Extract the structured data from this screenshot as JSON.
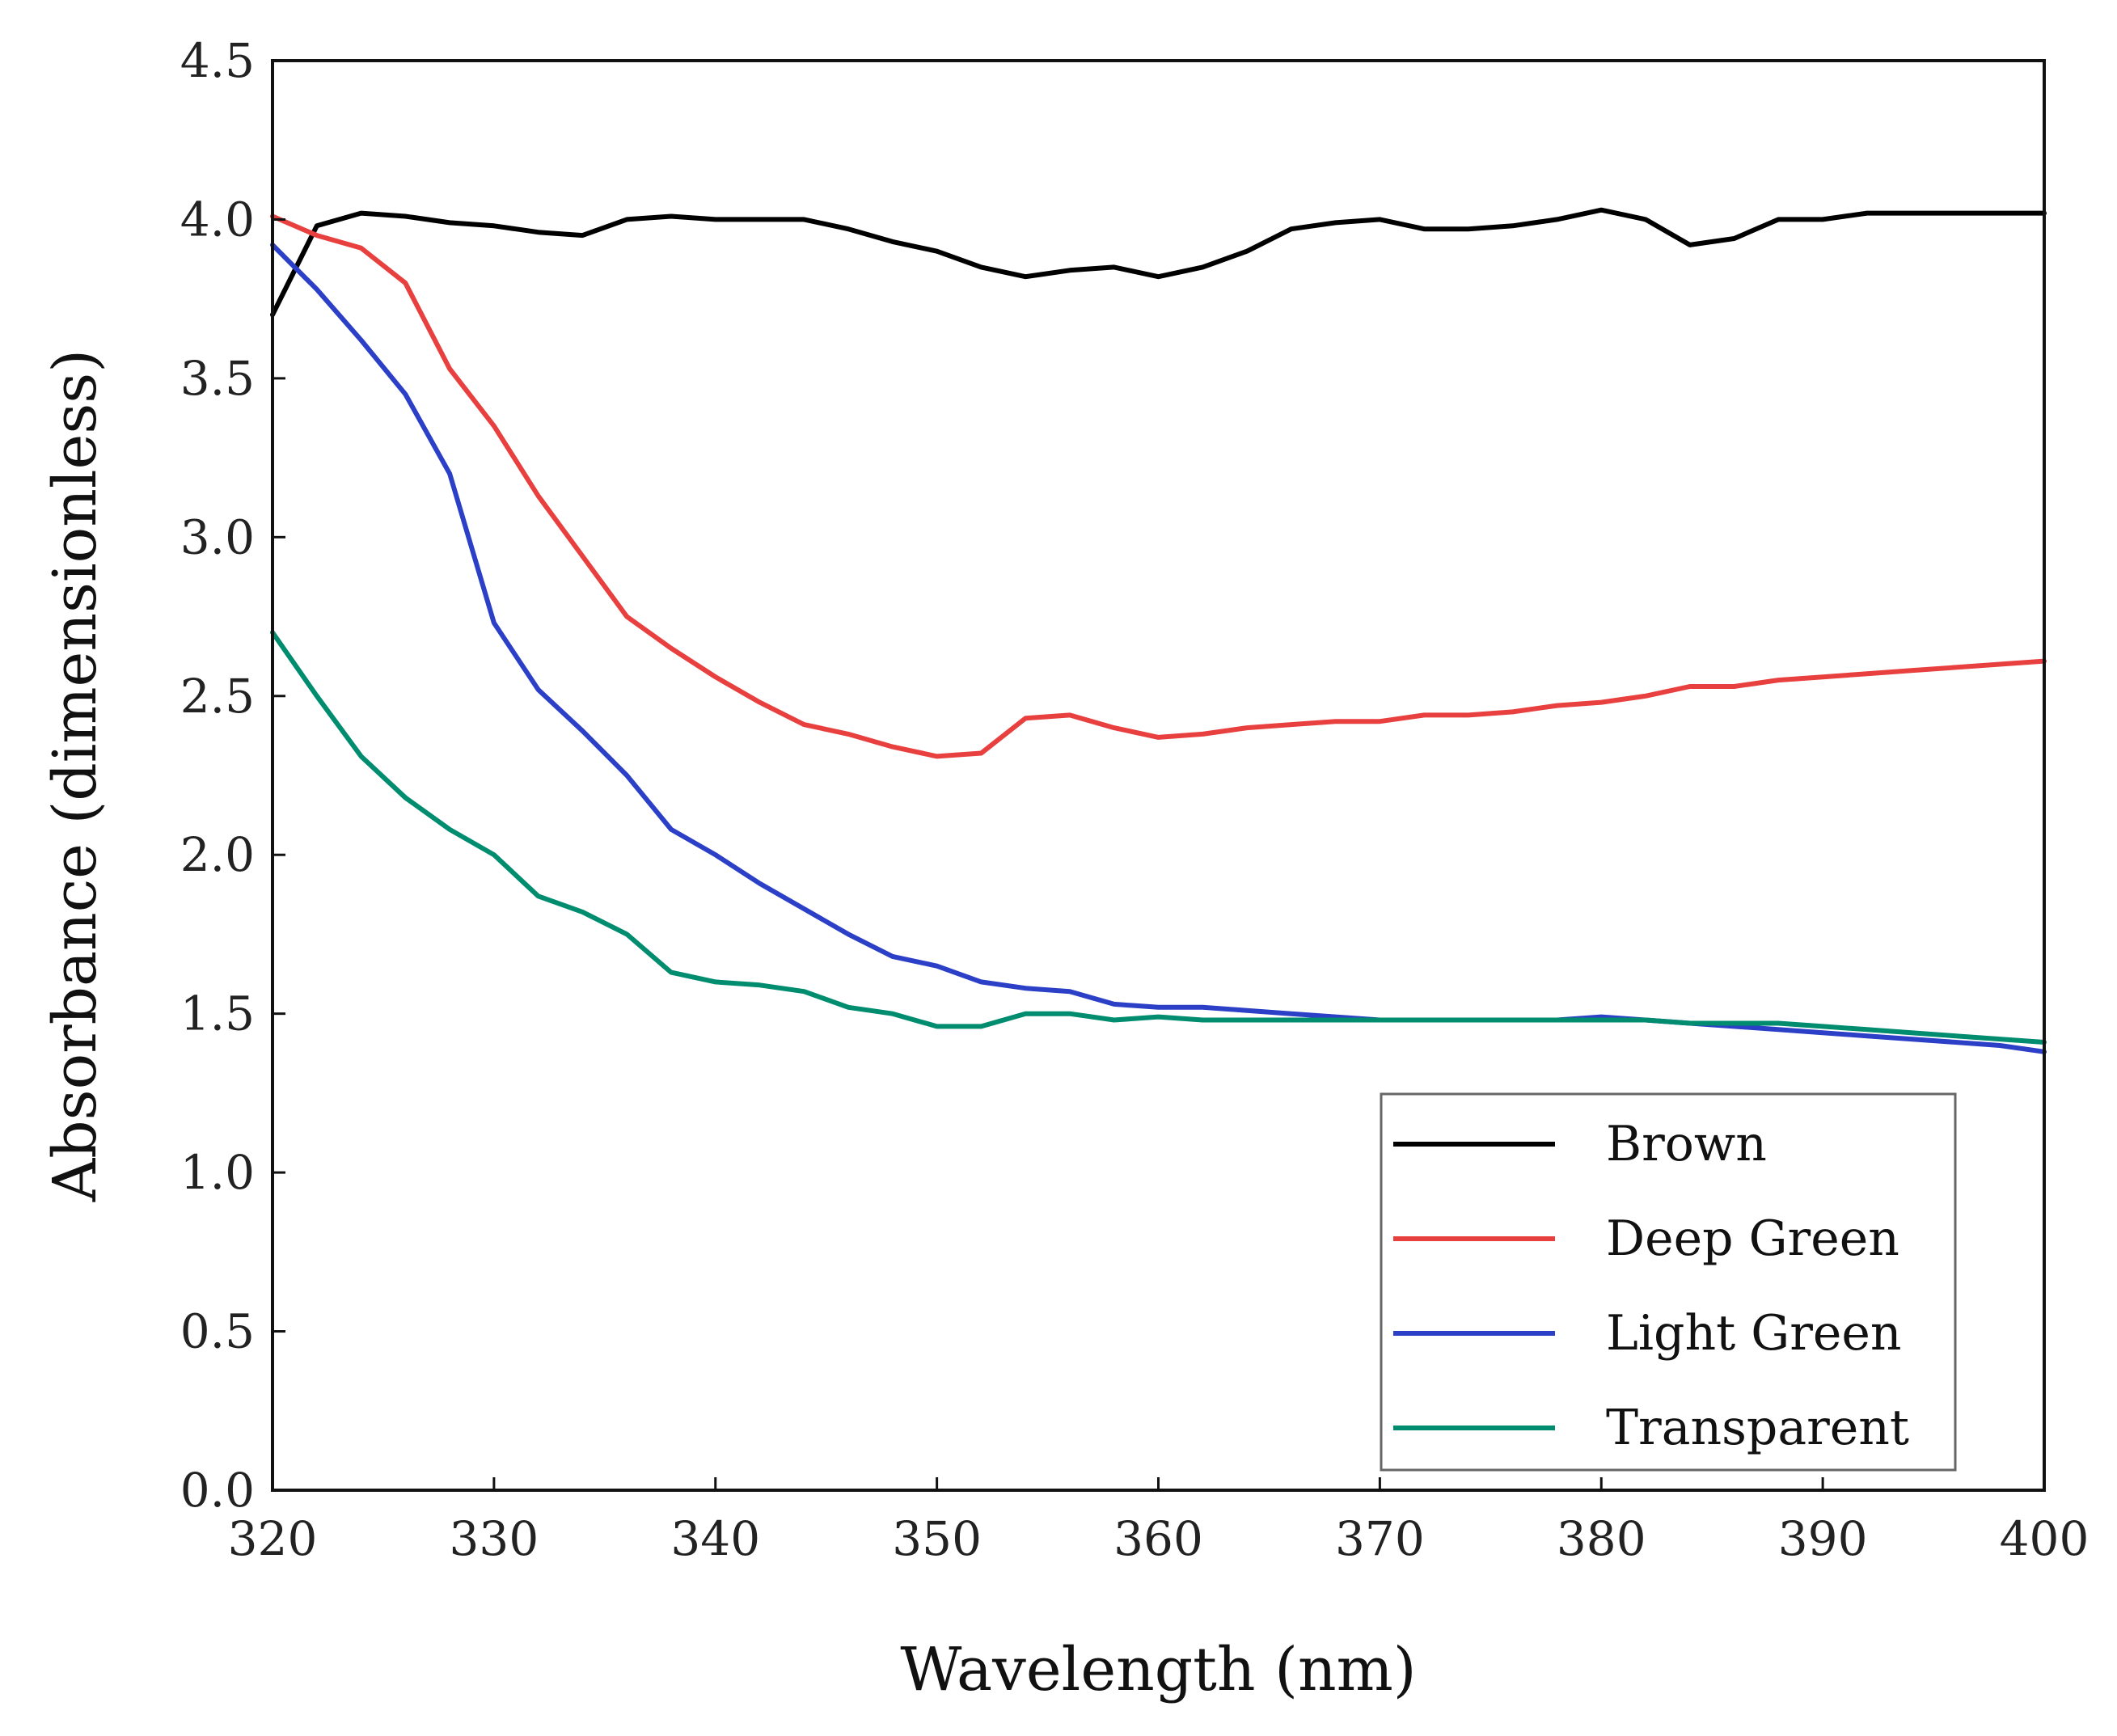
{
  "chart_data": {
    "type": "line",
    "title": "",
    "xlabel": "Wavelength (nm)",
    "ylabel": "Absorbance (dimensionless)",
    "xlim": [
      320,
      400
    ],
    "ylim": [
      0.0,
      4.5
    ],
    "xticks": [
      "320",
      "330",
      "340",
      "350",
      "360",
      "370",
      "380",
      "390",
      "400"
    ],
    "yticks": [
      "0.0",
      "0.5",
      "1.0",
      "1.5",
      "2.0",
      "2.5",
      "3.0",
      "3.5",
      "4.0",
      "4.5"
    ],
    "grid": false,
    "legend_position": "bottom-right",
    "x": [
      320,
      322,
      324,
      326,
      328,
      330,
      332,
      334,
      336,
      338,
      340,
      342,
      344,
      346,
      348,
      350,
      352,
      354,
      356,
      358,
      360,
      362,
      364,
      366,
      368,
      370,
      372,
      374,
      376,
      378,
      380,
      382,
      384,
      386,
      388,
      390,
      392,
      394,
      396,
      398,
      400
    ],
    "series": [
      {
        "name": "Brown",
        "color": "#000000",
        "values": [
          3.7,
          3.98,
          4.02,
          4.01,
          3.99,
          3.98,
          3.96,
          3.95,
          4.0,
          4.01,
          4.0,
          4.0,
          4.0,
          3.97,
          3.93,
          3.9,
          3.85,
          3.82,
          3.84,
          3.85,
          3.82,
          3.85,
          3.9,
          3.97,
          3.99,
          4.0,
          3.97,
          3.97,
          3.98,
          4.0,
          4.03,
          4.0,
          3.92,
          3.94,
          4.0,
          4.0,
          4.02,
          4.02,
          4.02,
          4.02,
          4.02
        ]
      },
      {
        "name": "Deep Green",
        "color": "#e8403f",
        "values": [
          4.01,
          3.95,
          3.91,
          3.8,
          3.53,
          3.35,
          3.13,
          2.94,
          2.75,
          2.65,
          2.56,
          2.48,
          2.41,
          2.38,
          2.34,
          2.31,
          2.32,
          2.43,
          2.44,
          2.4,
          2.37,
          2.38,
          2.4,
          2.41,
          2.42,
          2.42,
          2.44,
          2.44,
          2.45,
          2.47,
          2.48,
          2.5,
          2.53,
          2.53,
          2.55,
          2.56,
          2.57,
          2.58,
          2.59,
          2.6,
          2.61
        ]
      },
      {
        "name": "Light Green",
        "color": "#2b3fc7",
        "values": [
          3.92,
          3.78,
          3.62,
          3.45,
          3.2,
          2.73,
          2.52,
          2.39,
          2.25,
          2.08,
          2.0,
          1.91,
          1.83,
          1.75,
          1.68,
          1.65,
          1.6,
          1.58,
          1.57,
          1.53,
          1.52,
          1.52,
          1.51,
          1.5,
          1.49,
          1.48,
          1.48,
          1.48,
          1.48,
          1.48,
          1.49,
          1.48,
          1.47,
          1.46,
          1.45,
          1.44,
          1.43,
          1.42,
          1.41,
          1.4,
          1.38
        ]
      },
      {
        "name": "Transparent",
        "color": "#008c6e",
        "values": [
          2.7,
          2.5,
          2.31,
          2.18,
          2.08,
          2.0,
          1.87,
          1.82,
          1.75,
          1.63,
          1.6,
          1.59,
          1.57,
          1.52,
          1.5,
          1.46,
          1.46,
          1.5,
          1.5,
          1.48,
          1.49,
          1.48,
          1.48,
          1.48,
          1.48,
          1.48,
          1.48,
          1.48,
          1.48,
          1.48,
          1.48,
          1.48,
          1.47,
          1.47,
          1.47,
          1.46,
          1.45,
          1.44,
          1.43,
          1.42,
          1.41
        ]
      }
    ]
  }
}
